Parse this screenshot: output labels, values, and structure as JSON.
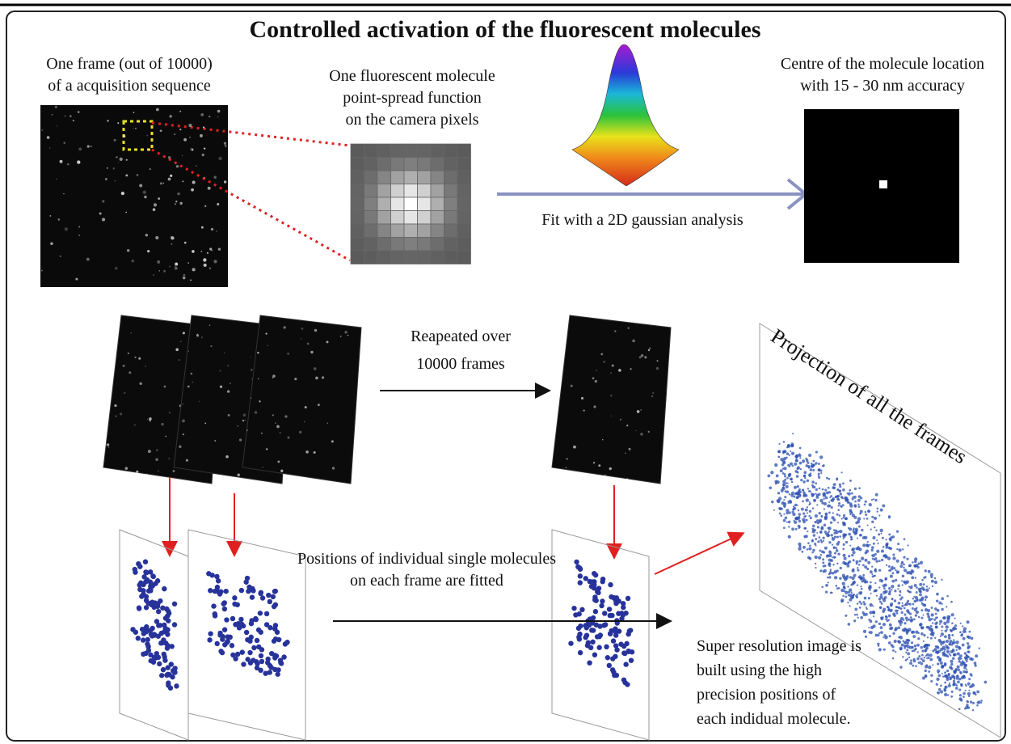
{
  "title": "Controlled activation of the fluorescent molecules",
  "labels": {
    "frame": [
      "One frame (out of 10000)",
      "of a acquisition sequence"
    ],
    "psf": [
      "One fluorescent molecule",
      "point-spread function",
      "on the camera pixels"
    ],
    "centre": [
      "Centre of the molecule location",
      "with 15 - 30 nm accuracy"
    ],
    "fit": "Fit with a 2D gaussian analysis",
    "repeated": [
      "Reapeated over",
      "10000 frames"
    ],
    "projection": "Projection of all the frames",
    "positions": [
      "Positions of individual single molecules",
      "on each frame are fitted"
    ],
    "super": [
      "Super resolution image is",
      "built using the high",
      "precision positions of",
      "each indidual molecule."
    ]
  }
}
